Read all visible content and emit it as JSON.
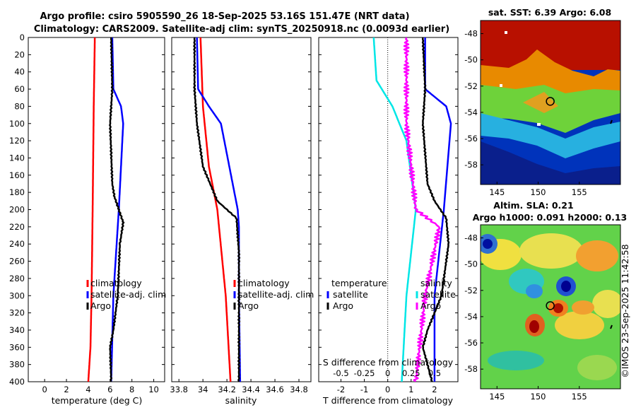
{
  "chart_data": [
    {
      "type": "line",
      "title_line1": "Argo profile: csiro 5905590_26 18-Sep-2025 53.16S 151.47E (NRT data)",
      "title_line2": "Climatology: CARS2009. Satellite-adj clim: synTS_20250918.nc (0.0093d earlier)",
      "xlabel": "temperature (deg C)",
      "xlim": [
        -1.5,
        11
      ],
      "xticks": [
        "0",
        "2",
        "4",
        "6",
        "8",
        "10"
      ],
      "xtick_values": [
        0,
        2,
        4,
        6,
        8,
        10
      ],
      "ylim": [
        0,
        400
      ],
      "yticks": [
        "0",
        "20",
        "40",
        "60",
        "80",
        "100",
        "120",
        "140",
        "160",
        "180",
        "200",
        "220",
        "240",
        "260",
        "280",
        "300",
        "320",
        "340",
        "360",
        "380",
        "400"
      ],
      "legend": [
        "climatology",
        "satellite-adj. clim",
        "Argo"
      ],
      "legend_position": "lower-right",
      "series": [
        {
          "name": "climatology",
          "color": "#ff0000",
          "depth": [
            0,
            80,
            200,
            300,
            360,
            400
          ],
          "values": [
            4.6,
            4.5,
            4.4,
            4.3,
            4.2,
            4.0
          ]
        },
        {
          "name": "satellite-adj. clim",
          "color": "#0000ff",
          "depth": [
            0,
            60,
            80,
            100,
            200,
            300,
            400
          ],
          "values": [
            6.2,
            6.3,
            7.0,
            7.2,
            6.8,
            6.3,
            6.1
          ]
        },
        {
          "name": "Argo",
          "color": "#000000",
          "depth": [
            0,
            60,
            100,
            170,
            185,
            200,
            215,
            240,
            300,
            340,
            360,
            400
          ],
          "values": [
            6.1,
            6.2,
            6.0,
            6.2,
            6.4,
            6.8,
            7.2,
            6.9,
            6.7,
            6.3,
            6.0,
            6.1
          ]
        }
      ]
    },
    {
      "type": "line",
      "xlabel": "salinity",
      "xlim": [
        33.74,
        34.9
      ],
      "xticks": [
        "33.8",
        "34",
        "34.2",
        "34.4",
        "34.6",
        "34.8"
      ],
      "xtick_values": [
        33.8,
        34.0,
        34.2,
        34.4,
        34.6,
        34.8
      ],
      "ylim": [
        0,
        400
      ],
      "legend": [
        "climatology",
        "satellite-adj. clim",
        "Argo"
      ],
      "legend_position": "lower-right",
      "series": [
        {
          "name": "climatology",
          "color": "#ff0000",
          "depth": [
            0,
            80,
            150,
            200,
            300,
            400
          ],
          "values": [
            33.98,
            34.0,
            34.05,
            34.12,
            34.19,
            34.23
          ]
        },
        {
          "name": "satellite-adj. clim",
          "color": "#0000ff",
          "depth": [
            0,
            60,
            80,
            100,
            200,
            220,
            300,
            400
          ],
          "values": [
            33.95,
            33.96,
            34.05,
            34.15,
            34.29,
            34.3,
            34.3,
            34.31
          ]
        },
        {
          "name": "Argo",
          "color": "#000000",
          "depth": [
            0,
            60,
            100,
            150,
            190,
            210,
            250,
            300,
            400
          ],
          "values": [
            33.93,
            33.93,
            33.95,
            34.0,
            34.12,
            34.28,
            34.3,
            34.3,
            34.3
          ]
        }
      ]
    },
    {
      "type": "line",
      "xlabel": "T difference from climatology",
      "xlim": [
        -2.95,
        3.0
      ],
      "xticks": [
        "-2",
        "-1",
        "0",
        "1",
        "2"
      ],
      "xtick_values": [
        -2,
        -1,
        0,
        1,
        2
      ],
      "top_axis_label": "S difference from climatology",
      "top_xticks": [
        "-0.5",
        "-0.25",
        "0",
        "0.25",
        "0.5"
      ],
      "top_xtick_values": [
        -0.5,
        -0.25,
        0,
        0.25,
        0.5
      ],
      "ylim": [
        0,
        400
      ],
      "legend_temperature_title": "temperature",
      "legend_temperature": [
        "satellite",
        "Argo"
      ],
      "legend_salinity_title": "salinity",
      "legend_salinity": [
        "satellite",
        "Argo"
      ],
      "series": [
        {
          "name": "temperature satellite",
          "color": "#0000ff",
          "depth": [
            0,
            60,
            80,
            100,
            200,
            300,
            400
          ],
          "values": [
            1.6,
            1.6,
            2.5,
            2.7,
            2.4,
            2.0,
            2.0
          ]
        },
        {
          "name": "temperature Argo",
          "color": "#000000",
          "depth": [
            0,
            60,
            100,
            170,
            190,
            210,
            240,
            300,
            340,
            360,
            400
          ],
          "values": [
            1.5,
            1.6,
            1.5,
            1.7,
            2.0,
            2.5,
            2.6,
            2.3,
            1.7,
            1.5,
            1.9
          ]
        },
        {
          "name": "salinity satellite",
          "color": "#00e6e6",
          "depth": [
            0,
            50,
            80,
            120,
            200,
            300,
            400
          ],
          "values": [
            -0.15,
            -0.12,
            0.05,
            0.2,
            0.3,
            0.2,
            0.15
          ]
        },
        {
          "name": "salinity Argo",
          "color": "#ff00ff",
          "depth": [
            0,
            100,
            200,
            220,
            300,
            400
          ],
          "values": [
            0.2,
            0.2,
            0.3,
            0.55,
            0.4,
            0.3
          ]
        }
      ]
    },
    {
      "type": "heatmap",
      "title": "sat. SST: 6.39 Argo: 6.08",
      "xlim": [
        143,
        160
      ],
      "ylim": [
        -59.5,
        -47
      ],
      "xticks": [
        "145",
        "150",
        "155"
      ],
      "yticks": [
        "-48",
        "-50",
        "-52",
        "-54",
        "-56",
        "-58"
      ],
      "marker_lon": 151.47,
      "marker_lat": -53.16
    },
    {
      "type": "heatmap",
      "title_line1": "Altim. SLA: 0.21",
      "title_line2": "Argo h1000: 0.091 h2000: 0.13",
      "xlim": [
        143,
        160
      ],
      "ylim": [
        -59.5,
        -47
      ],
      "xticks": [
        "145",
        "150",
        "155"
      ],
      "yticks": [
        "-48",
        "-50",
        "-52",
        "-54",
        "-56",
        "-58"
      ],
      "marker_lon": 151.47,
      "marker_lat": -53.16
    }
  ],
  "watermark": "©IMOS 23-Sep-2025 11:42:58"
}
